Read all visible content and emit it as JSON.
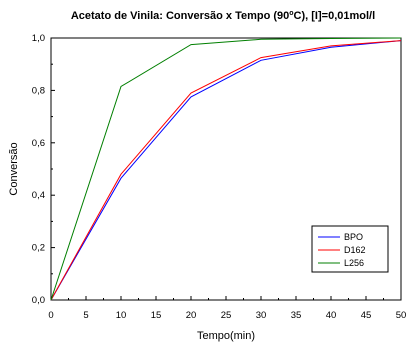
{
  "chart_data": {
    "type": "line",
    "title": {
      "before_superscript": "Acetato de Vinila: Conversão x Tempo (90",
      "superscript": "o",
      "after_superscript": "C), [I]=0,01mol/l"
    },
    "xlabel": "Tempo(min)",
    "ylabel": "Conversão",
    "xlim": [
      0,
      50
    ],
    "ylim": [
      0,
      1.0
    ],
    "x_ticks": [
      "0",
      "5",
      "10",
      "15",
      "20",
      "25",
      "30",
      "35",
      "40",
      "45",
      "50"
    ],
    "y_ticks": [
      "0,0",
      "0,2",
      "0,4",
      "0,6",
      "0,8",
      "1,0"
    ],
    "grid": false,
    "legend_position": "bottom-right",
    "x": [
      0,
      10,
      20,
      30,
      40,
      50
    ],
    "series": [
      {
        "name": "BPO",
        "color": "#0000ff",
        "values": [
          0,
          0.465,
          0.775,
          0.915,
          0.965,
          0.99
        ]
      },
      {
        "name": "D162",
        "color": "#ff0000",
        "values": [
          0,
          0.48,
          0.79,
          0.925,
          0.97,
          0.99
        ]
      },
      {
        "name": "L256",
        "color": "#007f00",
        "values": [
          0,
          0.815,
          0.975,
          0.995,
          0.998,
          1.0
        ]
      }
    ]
  }
}
